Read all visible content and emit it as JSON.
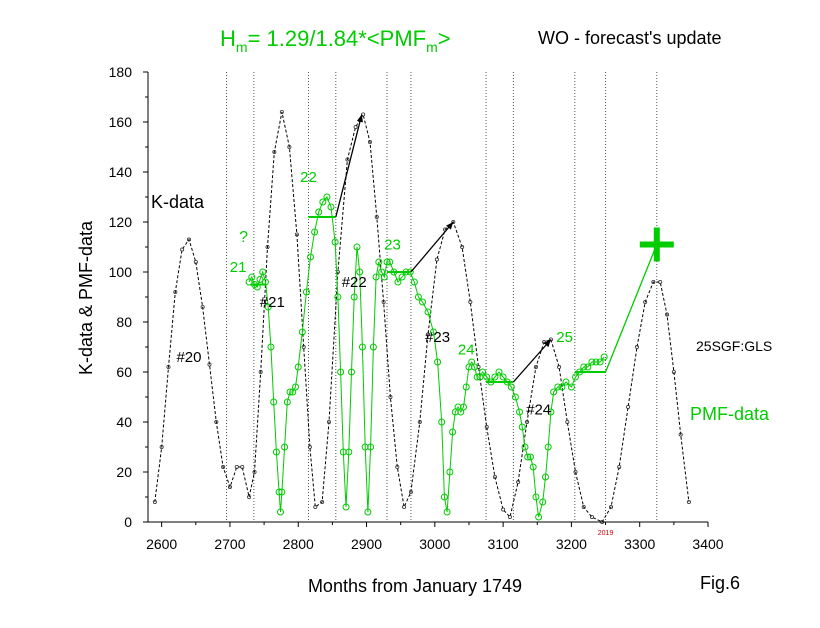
{
  "title": {
    "formula_main": "H",
    "formula_sub1": "m",
    "formula_mid": "= 1.29/1.84*<PMF",
    "formula_sub2": "m",
    "formula_end": ">",
    "right": "WO - forecast's update"
  },
  "figure_label": "Fig.6",
  "chart_data": {
    "type": "line",
    "xlabel": "Months from January 1749",
    "ylabel": "K-data & PMF-data",
    "xlim": [
      2580,
      3400
    ],
    "ylim": [
      0,
      180
    ],
    "x_ticks": [
      2600,
      2700,
      2800,
      2900,
      3000,
      3100,
      3200,
      3300,
      3400
    ],
    "y_ticks": [
      0,
      20,
      40,
      60,
      80,
      100,
      120,
      140,
      160,
      180
    ],
    "grid": false,
    "colors": {
      "k": "#000000",
      "pmf": "#00cc00",
      "year_mark": "#cc0000"
    },
    "vertical_dotted_lines_x": [
      2695,
      2735,
      2815,
      2855,
      2930,
      2965,
      3075,
      3115,
      3205,
      3250,
      3325
    ],
    "series": [
      {
        "name": "K-data",
        "color": "#000000",
        "style": "dotted-line-with-markers",
        "points": [
          [
            2590,
            8
          ],
          [
            2600,
            30
          ],
          [
            2610,
            62
          ],
          [
            2620,
            92
          ],
          [
            2630,
            109
          ],
          [
            2640,
            113
          ],
          [
            2650,
            104
          ],
          [
            2660,
            86
          ],
          [
            2670,
            63
          ],
          [
            2680,
            40
          ],
          [
            2690,
            22
          ],
          [
            2700,
            14
          ],
          [
            2710,
            22
          ],
          [
            2718,
            22
          ],
          [
            2728,
            10
          ],
          [
            2736,
            20
          ],
          [
            2745,
            60
          ],
          [
            2755,
            110
          ],
          [
            2765,
            148
          ],
          [
            2776,
            164
          ],
          [
            2787,
            150
          ],
          [
            2798,
            115
          ],
          [
            2808,
            70
          ],
          [
            2817,
            30
          ],
          [
            2825,
            6
          ],
          [
            2835,
            8
          ],
          [
            2845,
            40
          ],
          [
            2858,
            100
          ],
          [
            2872,
            145
          ],
          [
            2884,
            158
          ],
          [
            2895,
            163
          ],
          [
            2905,
            152
          ],
          [
            2915,
            122
          ],
          [
            2925,
            88
          ],
          [
            2935,
            50
          ],
          [
            2945,
            22
          ],
          [
            2955,
            6
          ],
          [
            2965,
            12
          ],
          [
            2978,
            40
          ],
          [
            2990,
            75
          ],
          [
            3003,
            105
          ],
          [
            3015,
            117
          ],
          [
            3027,
            120
          ],
          [
            3040,
            110
          ],
          [
            3052,
            88
          ],
          [
            3064,
            62
          ],
          [
            3076,
            38
          ],
          [
            3088,
            18
          ],
          [
            3100,
            5
          ],
          [
            3110,
            2
          ],
          [
            3122,
            16
          ],
          [
            3135,
            40
          ],
          [
            3148,
            62
          ],
          [
            3160,
            72
          ],
          [
            3170,
            73
          ],
          [
            3182,
            62
          ],
          [
            3194,
            40
          ],
          [
            3206,
            20
          ],
          [
            3218,
            6
          ],
          [
            3230,
            2
          ],
          [
            3245,
            0
          ],
          [
            3258,
            6
          ],
          [
            3270,
            22
          ],
          [
            3283,
            46
          ],
          [
            3296,
            70
          ],
          [
            3308,
            88
          ],
          [
            3320,
            96
          ],
          [
            3330,
            96
          ],
          [
            3340,
            83
          ],
          [
            3350,
            60
          ],
          [
            3360,
            35
          ],
          [
            3372,
            8
          ]
        ]
      },
      {
        "name": "PMF-data",
        "color": "#00cc00",
        "style": "line-with-open-circles",
        "points": [
          [
            2728,
            96
          ],
          [
            2732,
            98
          ],
          [
            2736,
            95
          ],
          [
            2740,
            94
          ],
          [
            2744,
            97
          ],
          [
            2748,
            100
          ],
          [
            2752,
            96
          ],
          [
            2756,
            86
          ],
          [
            2760,
            70
          ],
          [
            2764,
            48
          ],
          [
            2768,
            28
          ],
          [
            2772,
            12
          ],
          [
            2774,
            4
          ],
          [
            2776,
            12
          ],
          [
            2780,
            30
          ],
          [
            2784,
            48
          ],
          [
            2788,
            52
          ],
          [
            2792,
            52
          ],
          [
            2796,
            54
          ],
          [
            2800,
            62
          ],
          [
            2806,
            76
          ],
          [
            2812,
            92
          ],
          [
            2818,
            106
          ],
          [
            2824,
            116
          ],
          [
            2830,
            124
          ],
          [
            2836,
            128
          ],
          [
            2842,
            130
          ],
          [
            2848,
            126
          ],
          [
            2854,
            112
          ],
          [
            2858,
            90
          ],
          [
            2862,
            60
          ],
          [
            2866,
            28
          ],
          [
            2870,
            6
          ],
          [
            2874,
            28
          ],
          [
            2878,
            60
          ],
          [
            2882,
            90
          ],
          [
            2886,
            110
          ],
          [
            2890,
            100
          ],
          [
            2894,
            70
          ],
          [
            2898,
            30
          ],
          [
            2902,
            4
          ],
          [
            2906,
            30
          ],
          [
            2910,
            70
          ],
          [
            2914,
            98
          ],
          [
            2918,
            104
          ],
          [
            2922,
            100
          ],
          [
            2926,
            98
          ],
          [
            2930,
            104
          ],
          [
            2934,
            104
          ],
          [
            2940,
            100
          ],
          [
            2946,
            96
          ],
          [
            2952,
            98
          ],
          [
            2958,
            100
          ],
          [
            2964,
            100
          ],
          [
            2970,
            96
          ],
          [
            2976,
            90
          ],
          [
            2982,
            88
          ],
          [
            2990,
            84
          ],
          [
            2998,
            76
          ],
          [
            3004,
            64
          ],
          [
            3010,
            40
          ],
          [
            3014,
            10
          ],
          [
            3018,
            4
          ],
          [
            3022,
            20
          ],
          [
            3026,
            36
          ],
          [
            3030,
            44
          ],
          [
            3034,
            46
          ],
          [
            3038,
            44
          ],
          [
            3042,
            46
          ],
          [
            3046,
            54
          ],
          [
            3050,
            62
          ],
          [
            3054,
            64
          ],
          [
            3058,
            62
          ],
          [
            3062,
            58
          ],
          [
            3066,
            58
          ],
          [
            3070,
            60
          ],
          [
            3076,
            58
          ],
          [
            3082,
            56
          ],
          [
            3088,
            58
          ],
          [
            3094,
            60
          ],
          [
            3100,
            58
          ],
          [
            3106,
            56
          ],
          [
            3112,
            54
          ],
          [
            3118,
            50
          ],
          [
            3124,
            44
          ],
          [
            3128,
            38
          ],
          [
            3132,
            30
          ],
          [
            3136,
            26
          ],
          [
            3140,
            26
          ],
          [
            3144,
            22
          ],
          [
            3148,
            10
          ],
          [
            3152,
            2
          ],
          [
            3158,
            8
          ],
          [
            3162,
            18
          ],
          [
            3166,
            30
          ],
          [
            3170,
            44
          ],
          [
            3174,
            52
          ],
          [
            3180,
            54
          ],
          [
            3186,
            54
          ],
          [
            3192,
            56
          ],
          [
            3200,
            54
          ],
          [
            3206,
            58
          ],
          [
            3212,
            60
          ],
          [
            3218,
            62
          ],
          [
            3224,
            62
          ],
          [
            3230,
            64
          ],
          [
            3236,
            64
          ],
          [
            3242,
            64
          ],
          [
            3248,
            66
          ]
        ]
      }
    ],
    "means": [
      {
        "label": "21",
        "x0": 2730,
        "x1": 2752,
        "y": 95
      },
      {
        "label": "22",
        "x0": 2815,
        "x1": 2855,
        "y": 122
      },
      {
        "label": "23",
        "x0": 2930,
        "x1": 2965,
        "y": 100
      },
      {
        "label": "24",
        "x0": 3075,
        "x1": 3115,
        "y": 56
      },
      {
        "label": "25",
        "x0": 3205,
        "x1": 3250,
        "y": 60
      }
    ],
    "arrows": [
      {
        "color": "#000000",
        "from": [
          2855,
          122
        ],
        "to": [
          2893,
          163
        ]
      },
      {
        "color": "#000000",
        "from": [
          2965,
          100
        ],
        "to": [
          3027,
          120
        ]
      },
      {
        "color": "#000000",
        "from": [
          3115,
          56
        ],
        "to": [
          3170,
          73
        ]
      },
      {
        "color": "#00cc00",
        "from": [
          3250,
          60
        ],
        "to": [
          3325,
          111
        ]
      }
    ],
    "forecast_cross": {
      "x": 3325,
      "y": 111
    },
    "labels": {
      "k_data": "K-data",
      "pmf_data": "PMF-data",
      "source": "25SGF:GLS",
      "question": "?",
      "cycles_k": [
        {
          "text": "#20",
          "x": 2640,
          "y": 64
        },
        {
          "text": "#21",
          "x": 2762,
          "y": 86
        },
        {
          "text": "#22",
          "x": 2882,
          "y": 94
        },
        {
          "text": "#23",
          "x": 3004,
          "y": 72
        },
        {
          "text": "#24",
          "x": 3152,
          "y": 43
        }
      ],
      "cycles_pmf": [
        {
          "text": "21",
          "x": 2712,
          "y": 100
        },
        {
          "text": "22",
          "x": 2815,
          "y": 136
        },
        {
          "text": "23",
          "x": 2938,
          "y": 109
        },
        {
          "text": "24",
          "x": 3046,
          "y": 67
        },
        {
          "text": "25",
          "x": 3190,
          "y": 72
        }
      ],
      "question_pos": {
        "x": 2720,
        "y": 112
      },
      "year_mark": {
        "text": "2019",
        "x": 3250,
        "y": -5
      }
    }
  }
}
